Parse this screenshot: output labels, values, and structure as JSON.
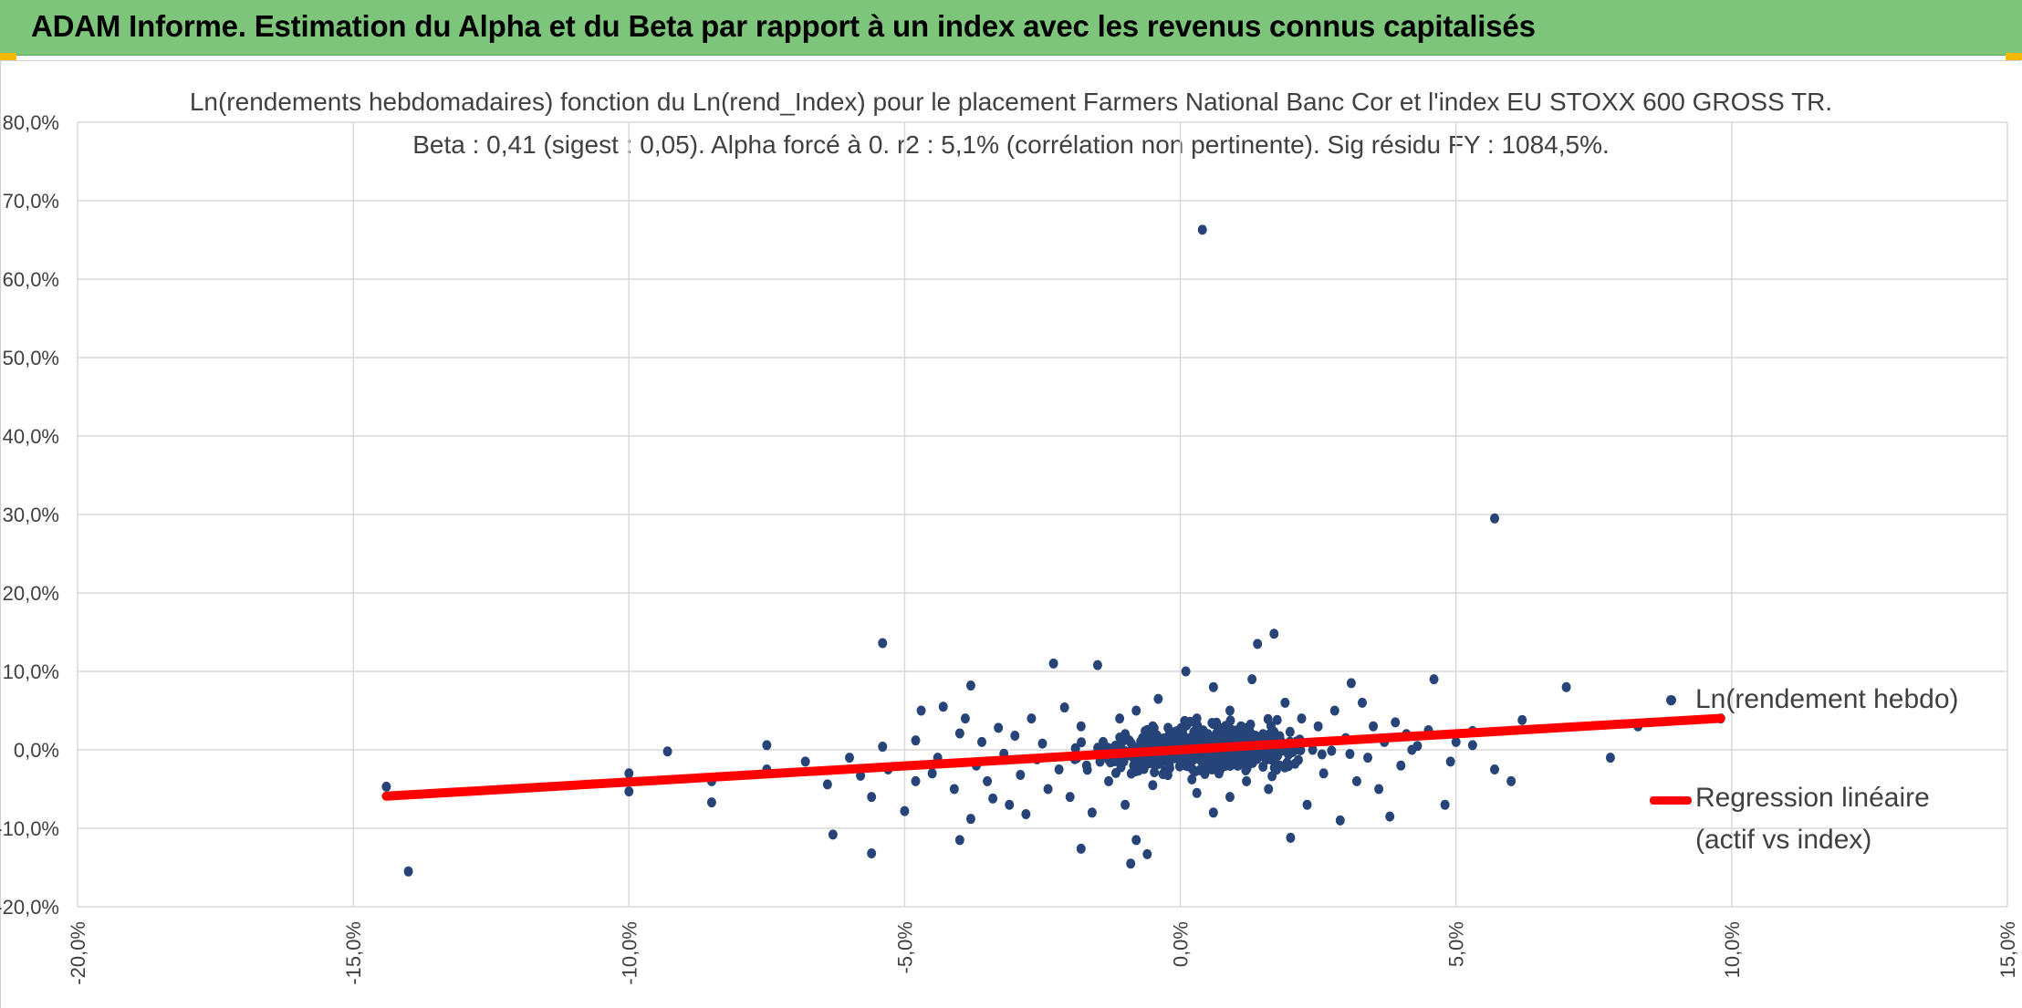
{
  "banner": {
    "title": "ADAM Informe. Estimation du Alpha et du Beta par rapport à un index avec les revenus connus capitalisés"
  },
  "chart_data": {
    "type": "scatter",
    "title": "Ln(rendements hebdomadaires) fonction du Ln(rend_Index) pour le placement Farmers National Banc Cor et l'index EU STOXX 600 GROSS TR.",
    "subtitle": "Beta : 0,41 (sigest : 0,05). Alpha forcé à 0. r2 : 5,1% (corrélation non pertinente). Sig résidu FY : 1084,5%.",
    "xlabel": "",
    "ylabel": "",
    "xlim": [
      -0.2,
      0.15
    ],
    "ylim": [
      -0.2,
      0.8
    ],
    "x_ticks": [
      "-20,0%",
      "-15,0%",
      "-10,0%",
      "-5,0%",
      "0,0%",
      "5,0%",
      "10,0%",
      "15,0%"
    ],
    "y_ticks": [
      "80,0%",
      "70,0%",
      "60,0%",
      "50,0%",
      "40,0%",
      "30,0%",
      "20,0%",
      "10,0%",
      "0,0%",
      "-10,0%",
      "-20,0%"
    ],
    "grid": true,
    "legend_position": "right",
    "series": [
      {
        "name": "Ln(rendement hebdo)",
        "kind": "scatter",
        "color": "#264478",
        "points": [
          [
            -0.144,
            -0.047
          ],
          [
            -0.14,
            -0.155
          ],
          [
            -0.1,
            -0.03
          ],
          [
            -0.1,
            -0.053
          ],
          [
            -0.093,
            -0.002
          ],
          [
            -0.085,
            -0.04
          ],
          [
            -0.085,
            -0.067
          ],
          [
            -0.075,
            0.006
          ],
          [
            -0.075,
            -0.025
          ],
          [
            -0.068,
            -0.015
          ],
          [
            -0.064,
            -0.044
          ],
          [
            -0.063,
            -0.108
          ],
          [
            -0.06,
            -0.01
          ],
          [
            -0.058,
            -0.033
          ],
          [
            -0.056,
            -0.132
          ],
          [
            -0.056,
            -0.06
          ],
          [
            -0.054,
            0.136
          ],
          [
            -0.054,
            0.004
          ],
          [
            -0.053,
            -0.025
          ],
          [
            -0.05,
            -0.078
          ],
          [
            -0.048,
            -0.04
          ],
          [
            -0.048,
            0.012
          ],
          [
            -0.047,
            0.05
          ],
          [
            -0.045,
            -0.03
          ],
          [
            -0.044,
            -0.01
          ],
          [
            -0.043,
            0.055
          ],
          [
            -0.041,
            -0.05
          ],
          [
            -0.04,
            -0.115
          ],
          [
            -0.04,
            0.021
          ],
          [
            -0.039,
            0.04
          ],
          [
            -0.038,
            -0.088
          ],
          [
            -0.038,
            0.082
          ],
          [
            -0.037,
            -0.02
          ],
          [
            -0.036,
            0.01
          ],
          [
            -0.035,
            -0.04
          ],
          [
            -0.034,
            -0.062
          ],
          [
            -0.033,
            0.028
          ],
          [
            -0.032,
            -0.005
          ],
          [
            -0.031,
            -0.07
          ],
          [
            -0.03,
            0.018
          ],
          [
            -0.029,
            -0.032
          ],
          [
            -0.028,
            -0.082
          ],
          [
            -0.027,
            0.04
          ],
          [
            -0.026,
            -0.012
          ],
          [
            -0.025,
            0.008
          ],
          [
            -0.024,
            -0.05
          ],
          [
            -0.023,
            0.11
          ],
          [
            -0.022,
            -0.025
          ],
          [
            -0.021,
            0.054
          ],
          [
            -0.02,
            -0.06
          ],
          [
            -0.019,
            0.002
          ],
          [
            -0.018,
            -0.126
          ],
          [
            -0.018,
            0.03
          ],
          [
            -0.017,
            -0.02
          ],
          [
            -0.016,
            -0.08
          ],
          [
            -0.015,
            0.108
          ],
          [
            -0.014,
            0.01
          ],
          [
            -0.013,
            -0.04
          ],
          [
            -0.012,
            -0.008
          ],
          [
            -0.011,
            0.04
          ],
          [
            -0.01,
            -0.07
          ],
          [
            -0.01,
            0.02
          ],
          [
            -0.009,
            -0.145
          ],
          [
            -0.008,
            -0.115
          ],
          [
            -0.008,
            0.05
          ],
          [
            -0.007,
            -0.015
          ],
          [
            -0.006,
            -0.133
          ],
          [
            -0.006,
            0.005
          ],
          [
            -0.005,
            0.03
          ],
          [
            -0.005,
            -0.045
          ],
          [
            -0.004,
            0.065
          ],
          [
            -0.003,
            -0.03
          ],
          [
            -0.002,
            0.012
          ],
          [
            -0.001,
            -0.008
          ],
          [
            0.0,
            0.025
          ],
          [
            0.001,
            -0.02
          ],
          [
            0.001,
            0.1
          ],
          [
            0.002,
            0.005
          ],
          [
            0.003,
            -0.055
          ],
          [
            0.003,
            0.04
          ],
          [
            0.004,
            0.663
          ],
          [
            0.004,
            -0.01
          ],
          [
            0.005,
            0.02
          ],
          [
            0.006,
            -0.08
          ],
          [
            0.006,
            0.08
          ],
          [
            0.007,
            -0.03
          ],
          [
            0.008,
            0.01
          ],
          [
            0.009,
            0.05
          ],
          [
            0.009,
            -0.06
          ],
          [
            0.01,
            0.0
          ],
          [
            0.011,
            0.03
          ],
          [
            0.012,
            -0.04
          ],
          [
            0.013,
            0.09
          ],
          [
            0.013,
            -0.01
          ],
          [
            0.014,
            0.135
          ],
          [
            0.015,
            0.02
          ],
          [
            0.016,
            -0.05
          ],
          [
            0.017,
            0.148
          ],
          [
            0.017,
            0.005
          ],
          [
            0.018,
            -0.02
          ],
          [
            0.019,
            0.06
          ],
          [
            0.02,
            -0.112
          ],
          [
            0.021,
            0.01
          ],
          [
            0.022,
            0.04
          ],
          [
            0.023,
            -0.07
          ],
          [
            0.024,
            0.0
          ],
          [
            0.025,
            0.03
          ],
          [
            0.026,
            -0.03
          ],
          [
            0.028,
            0.05
          ],
          [
            0.029,
            -0.09
          ],
          [
            0.03,
            0.015
          ],
          [
            0.031,
            0.085
          ],
          [
            0.032,
            -0.04
          ],
          [
            0.033,
            0.06
          ],
          [
            0.034,
            -0.01
          ],
          [
            0.035,
            0.03
          ],
          [
            0.036,
            -0.05
          ],
          [
            0.037,
            0.01
          ],
          [
            0.038,
            -0.085
          ],
          [
            0.039,
            0.035
          ],
          [
            0.04,
            -0.02
          ],
          [
            0.041,
            0.02
          ],
          [
            0.042,
            0.0
          ],
          [
            0.043,
            0.005
          ],
          [
            0.045,
            0.025
          ],
          [
            0.046,
            0.09
          ],
          [
            0.048,
            -0.07
          ],
          [
            0.049,
            -0.015
          ],
          [
            0.05,
            0.01
          ],
          [
            0.053,
            0.024
          ],
          [
            0.053,
            0.006
          ],
          [
            0.057,
            0.295
          ],
          [
            0.057,
            -0.025
          ],
          [
            0.06,
            -0.04
          ],
          [
            0.062,
            0.038
          ],
          [
            0.07,
            0.08
          ],
          [
            0.078,
            -0.01
          ],
          [
            0.083,
            0.03
          ],
          [
            0.089,
            0.063
          ],
          [
            0.098,
            0.04
          ]
        ]
      },
      {
        "name": "Regression linéaire (actif vs index)",
        "kind": "line",
        "color": "#ff0000",
        "slope": 0.41,
        "x_range": [
          -0.144,
          0.098
        ]
      }
    ]
  },
  "legend": {
    "scatter_label": "Ln(rendement hebdo)",
    "line_label_1": "Regression linéaire",
    "line_label_2": "(actif vs index)"
  },
  "colors": {
    "banner": "#7dc57a",
    "marker": "#264478",
    "regression": "#ff0000",
    "grid": "#d9d9d9",
    "accent": "#f5b800"
  }
}
